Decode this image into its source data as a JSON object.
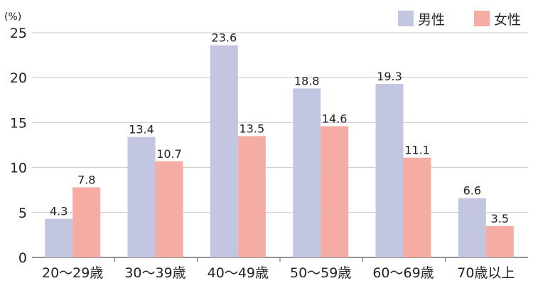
{
  "chart_data": {
    "type": "bar",
    "unit_label": "(%)",
    "categories": [
      "20〜29歳",
      "30〜39歳",
      "40〜49歳",
      "50〜59歳",
      "60〜69歳",
      "70歳以上"
    ],
    "series": [
      {
        "name": "男性",
        "color": "#c3c6e0",
        "values": [
          4.3,
          13.4,
          23.6,
          18.8,
          19.3,
          6.6
        ]
      },
      {
        "name": "女性",
        "color": "#f4aca4",
        "values": [
          7.8,
          10.7,
          13.5,
          14.6,
          11.1,
          3.5
        ]
      }
    ],
    "data_labels": [
      [
        "4.3",
        "13.4",
        "23.6",
        "18.8",
        "19.3",
        "6.6"
      ],
      [
        "7.8",
        "10.7",
        "13.5",
        "14.6",
        "11.1",
        "3.5"
      ]
    ],
    "ylim": [
      0,
      25
    ],
    "yticks": [
      0,
      5,
      10,
      15,
      20,
      25
    ],
    "grid": true,
    "legend_position": "top-right"
  }
}
